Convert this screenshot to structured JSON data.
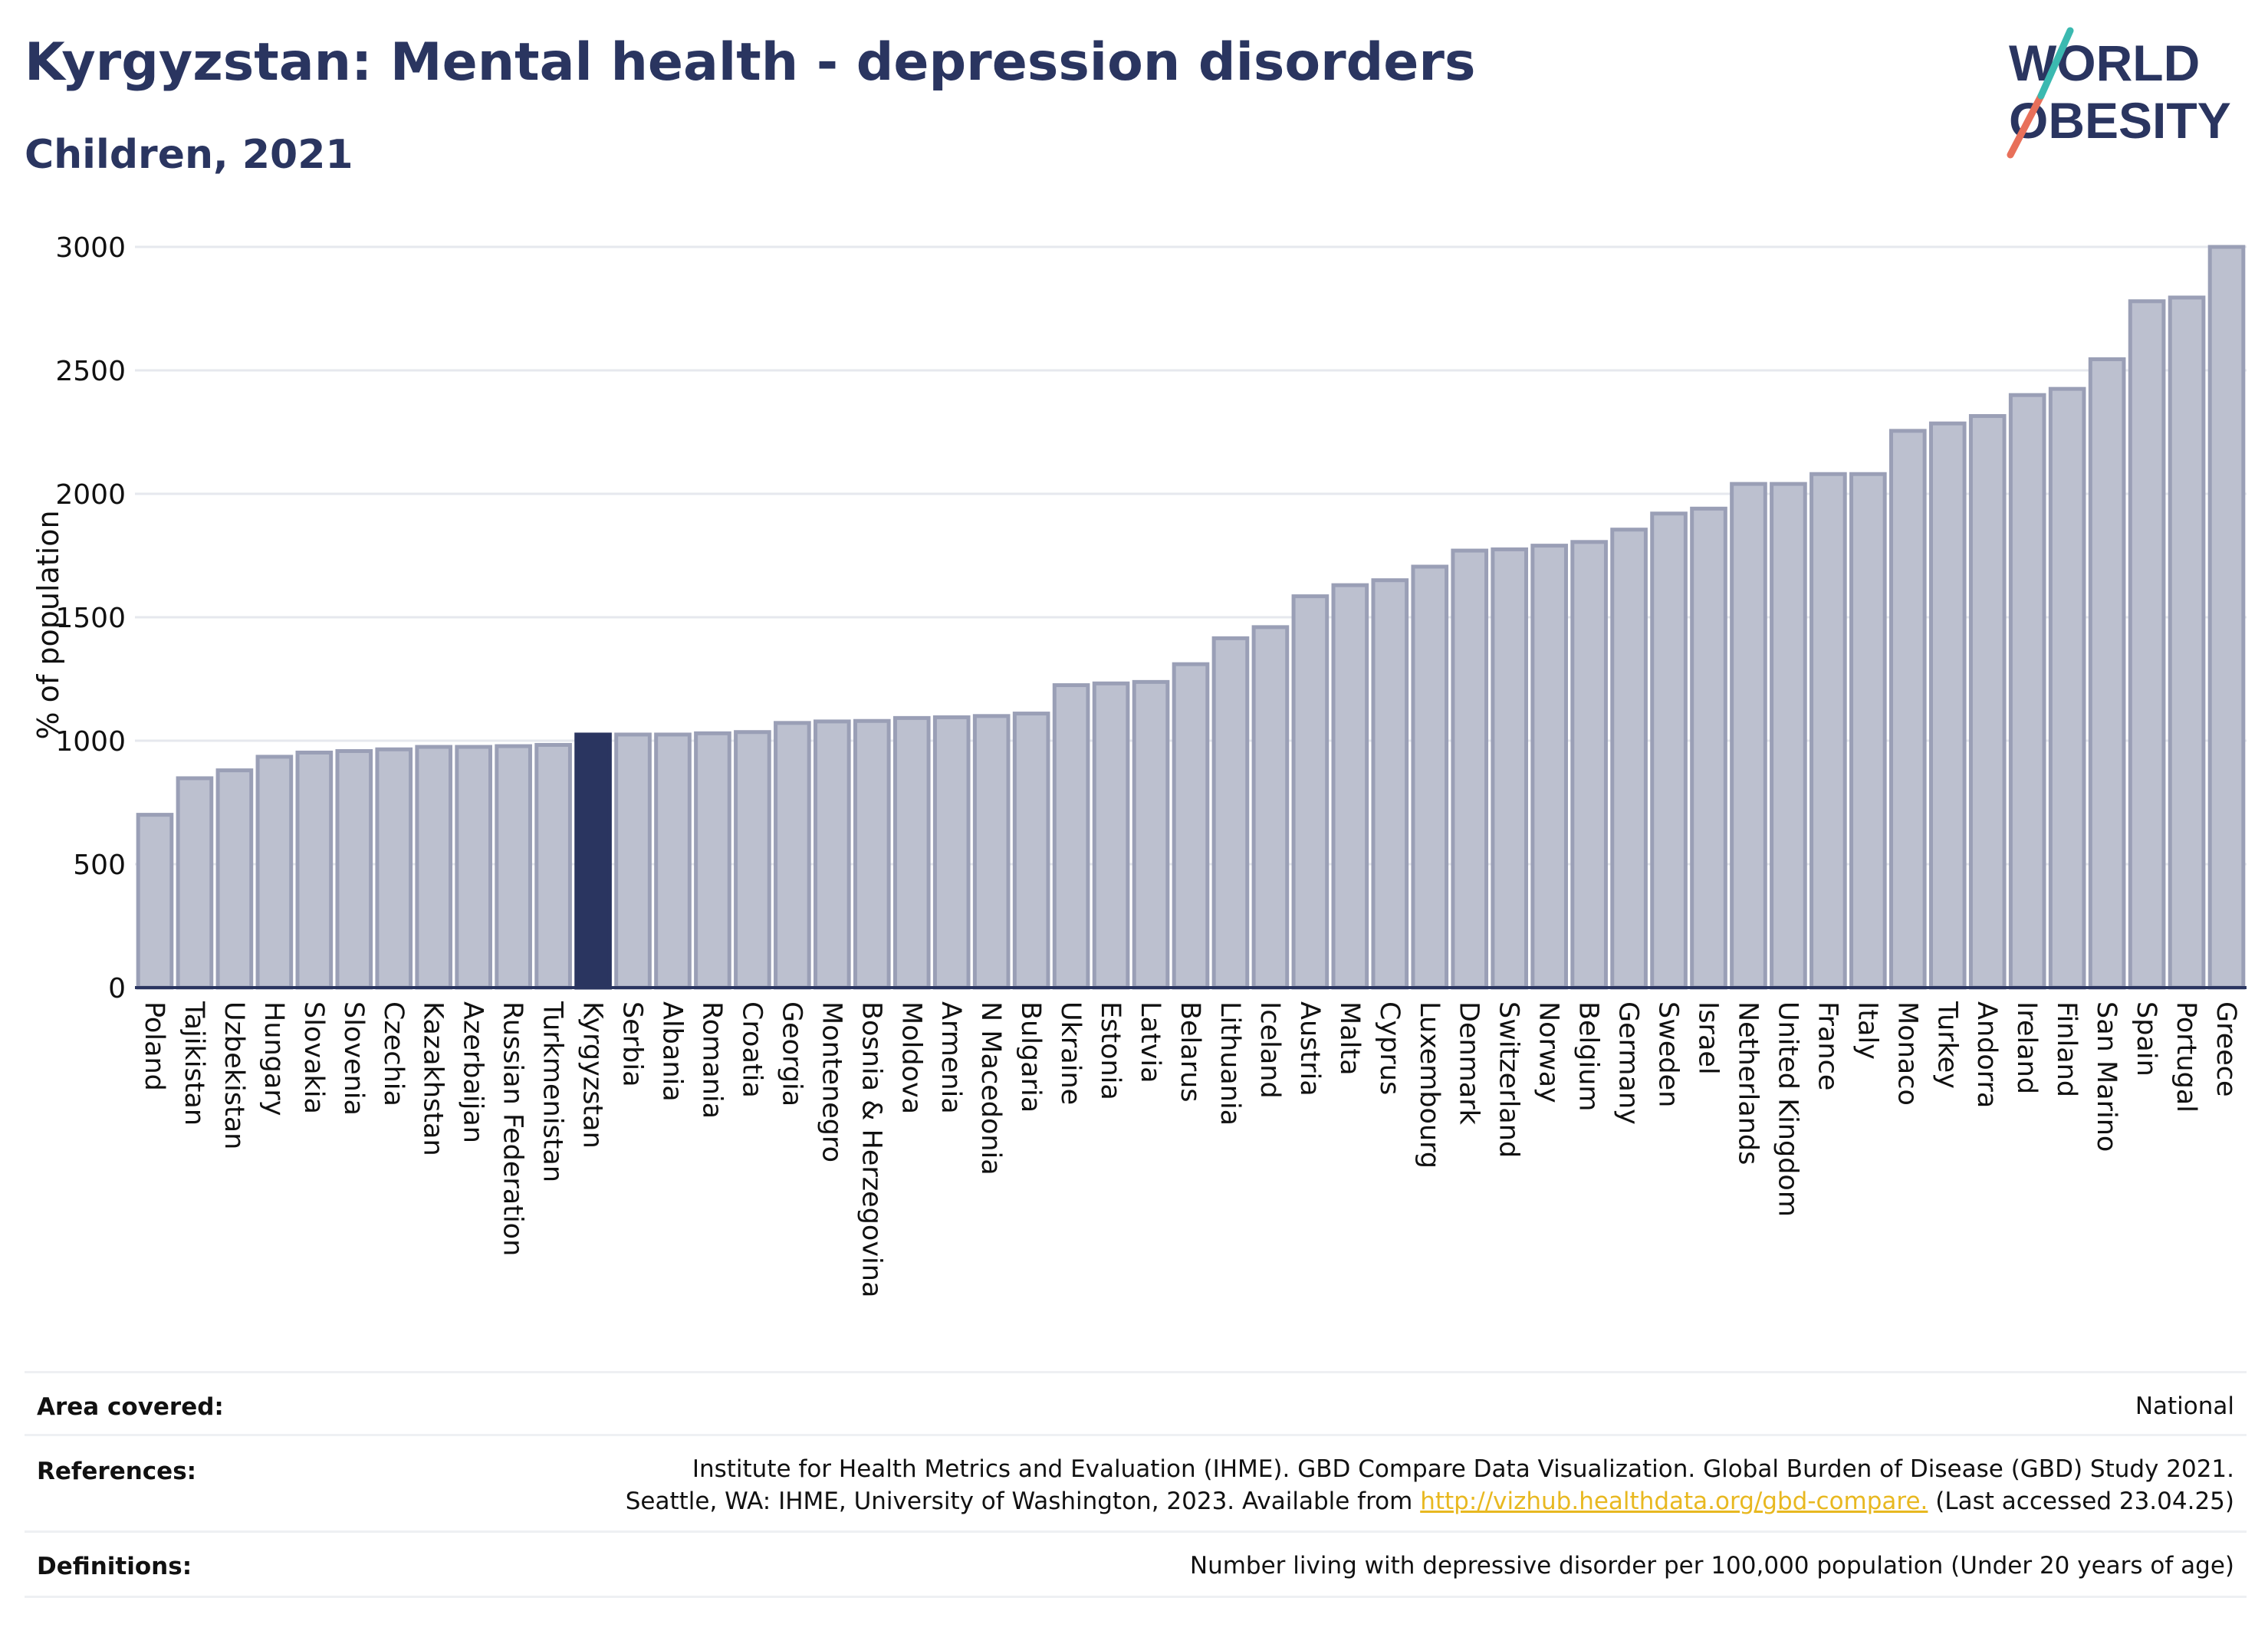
{
  "header": {
    "title": "Kyrgyzstan: Mental health - depression disorders",
    "subtitle": "Children, 2021"
  },
  "logo": {
    "line1": "WORLD",
    "line2": "OBESITY"
  },
  "colors": {
    "highlight": "#2a3560",
    "bar": "#bcc0cf",
    "bar_edge": "#9a9fb6",
    "title": "#2a3560",
    "link": "#e8b820"
  },
  "chart_data": {
    "type": "bar",
    "ylabel": "% of population",
    "ylim": [
      0,
      3000
    ],
    "yticks": [
      0,
      500,
      1000,
      1500,
      2000,
      2500,
      3000
    ],
    "grid": true,
    "highlight": "Kyrgyzstan",
    "categories": [
      "Poland",
      "Tajikistan",
      "Uzbekistan",
      "Hungary",
      "Slovakia",
      "Slovenia",
      "Czechia",
      "Kazakhstan",
      "Azerbaijan",
      "Russian Federation",
      "Turkmenistan",
      "Kyrgyzstan",
      "Serbia",
      "Albania",
      "Romania",
      "Croatia",
      "Georgia",
      "Montenegro",
      "Bosnia & Herzegovina",
      "Moldova",
      "Armenia",
      "N Macedonia",
      "Bulgaria",
      "Ukraine",
      "Estonia",
      "Latvia",
      "Belarus",
      "Lithuania",
      "Iceland",
      "Austria",
      "Malta",
      "Cyprus",
      "Luxembourg",
      "Denmark",
      "Switzerland",
      "Norway",
      "Belgium",
      "Germany",
      "Sweden",
      "Israel",
      "Netherlands",
      "United Kingdom",
      "France",
      "Italy",
      "Monaco",
      "Turkey",
      "Andorra",
      "Ireland",
      "Finland",
      "San Marino",
      "Spain",
      "Portugal",
      "Greece"
    ],
    "values": [
      700,
      848,
      880,
      935,
      952,
      958,
      965,
      975,
      975,
      978,
      983,
      1025,
      1025,
      1025,
      1030,
      1035,
      1072,
      1078,
      1080,
      1092,
      1095,
      1100,
      1110,
      1225,
      1232,
      1238,
      1310,
      1415,
      1460,
      1585,
      1630,
      1650,
      1705,
      1770,
      1775,
      1790,
      1805,
      1855,
      1920,
      1940,
      2040,
      2040,
      2080,
      2080,
      2255,
      2285,
      2315,
      2400,
      2425,
      2545,
      2780,
      2795,
      3000
    ]
  },
  "footer": {
    "area_label": "Area covered:",
    "area_value": "National",
    "references_label": "References:",
    "references_line1": "Institute for Health Metrics and Evaluation (IHME). GBD Compare Data Visualization. Global Burden of Disease (GBD) Study 2021.",
    "references_line2_pre": "Seattle, WA: IHME, University of Washington, 2023. Available from ",
    "references_link": "http://vizhub.healthdata.org/gbd-compare.",
    "references_line2_post": " (Last accessed 23.04.25)",
    "definitions_label": "Definitions:",
    "definitions_value": "Number living with depressive disorder per 100,000 population (Under 20 years of age)"
  }
}
